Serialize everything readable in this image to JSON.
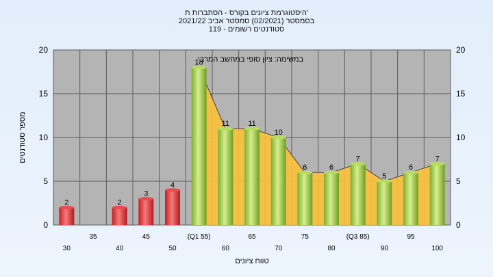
{
  "chart_data": {
    "type": "bar",
    "title": "היסטוגרמת ציונים בקורס - הסתברות ת'",
    "subtitle": "בסמסטר  (02/2021)  סמסטר אביב 2021/22",
    "note": "סטודנטים רשומים - 119",
    "annotation": "במשימה: ציון סופי במחשב המרבי",
    "xlabel": "טווח ציונים",
    "ylabel": "מספר סטודנטים",
    "ylim": [
      0,
      20
    ],
    "yticks": [
      "0",
      "5",
      "10",
      "15",
      "20"
    ],
    "grid": true,
    "categories": [
      "30",
      "35",
      "40",
      "45",
      "50",
      "(Q1 55)",
      "60",
      "65",
      "70",
      "75",
      "80",
      "(Q3 85)",
      "90",
      "95",
      "100"
    ],
    "tick_rows": [
      "low",
      "high",
      "low",
      "high",
      "low",
      "high",
      "low",
      "high",
      "low",
      "high",
      "low",
      "high",
      "low",
      "high",
      "low"
    ],
    "values": [
      2,
      0,
      2,
      3,
      4,
      18,
      11,
      11,
      10,
      6,
      6,
      7,
      5,
      6,
      7
    ],
    "bar_groups": [
      "fail",
      "fail",
      "fail",
      "fail",
      "fail",
      "pass",
      "pass",
      "pass",
      "pass",
      "pass",
      "pass",
      "pass",
      "pass",
      "pass",
      "pass"
    ],
    "colors": {
      "fail": "#d8262c",
      "pass": "#8fc13b",
      "area": "#fcc13a",
      "plot_bg": "#b4b4b4",
      "gridline": "#5a5a5a"
    }
  }
}
